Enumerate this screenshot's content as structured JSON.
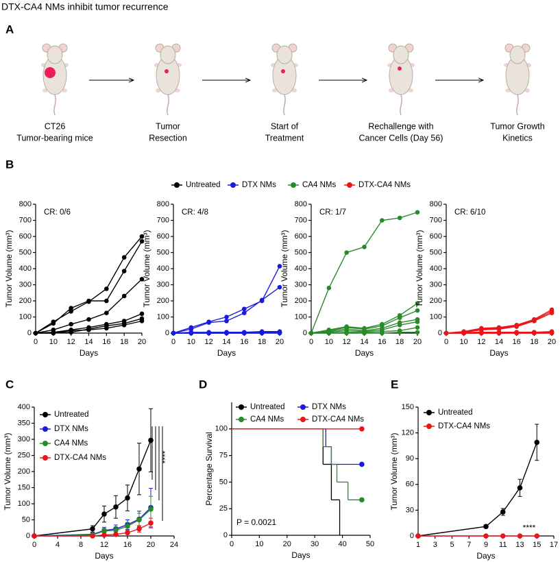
{
  "figure_title": "DTX-CA4 NMs inhibit tumor recurrence",
  "panel_a": {
    "label": "A",
    "steps": [
      {
        "lines": [
          "CT26",
          "Tumor-bearing mice"
        ],
        "color": "#1f1f8f"
      },
      {
        "lines": [
          "Tumor",
          "Resection"
        ],
        "color": "#1f1f8f"
      },
      {
        "lines": [
          "Start of",
          "Treatment"
        ],
        "color": "#e8151b"
      },
      {
        "lines": [
          "Rechallenge with",
          "Cancer Cells (Day 56)"
        ],
        "color": "#000000"
      },
      {
        "lines": [
          "Tumor Growth",
          "Kinetics"
        ],
        "color": "#e8151b"
      }
    ]
  },
  "chart_data": [
    {
      "type": "line",
      "panel_label": "B",
      "legend": [
        {
          "name": "Untreated",
          "color": "#000000"
        },
        {
          "name": "DTX NMs",
          "color": "#1a1adb"
        },
        {
          "name": "CA4 NMs",
          "color": "#2a8a2a"
        },
        {
          "name": "DTX-CA4 NMs",
          "color": "#e8151b"
        }
      ],
      "categories": [
        "0",
        "10",
        "12",
        "14",
        "16",
        "18",
        "20"
      ],
      "ylim": [
        0,
        800
      ],
      "yticks": [
        0,
        100,
        200,
        300,
        400,
        500,
        600,
        700,
        800
      ],
      "y_label": "Tumor Volume (mm³)",
      "x_label": "Days",
      "annotation_color": "#8b1a1a",
      "subplots": [
        {
          "annotation": "CR: 0/6",
          "color": "#000000",
          "lines": [
            [
              0,
              60,
              155,
              200,
              200,
              385,
              570
            ],
            [
              0,
              70,
              135,
              195,
              275,
              470,
              600
            ],
            [
              0,
              20,
              55,
              85,
              125,
              230,
              335
            ],
            [
              0,
              5,
              20,
              35,
              55,
              75,
              120
            ],
            [
              0,
              0,
              5,
              25,
              45,
              60,
              90
            ],
            [
              0,
              0,
              15,
              20,
              30,
              50,
              75
            ]
          ]
        },
        {
          "annotation": "CR: 4/8",
          "color": "#1a1adb",
          "lines": [
            [
              0,
              35,
              70,
              100,
              150,
              200,
              415
            ],
            [
              0,
              25,
              65,
              75,
              125,
              205,
              285
            ],
            [
              0,
              0,
              5,
              5,
              5,
              5,
              5
            ],
            [
              0,
              0,
              0,
              5,
              5,
              10,
              10
            ],
            [
              0,
              5,
              5,
              5,
              5,
              5,
              5
            ],
            [
              0,
              0,
              0,
              0,
              0,
              5,
              5
            ],
            [
              0,
              0,
              0,
              0,
              0,
              0,
              0
            ],
            [
              0,
              0,
              0,
              0,
              0,
              0,
              5
            ]
          ]
        },
        {
          "annotation": "CR: 1/7",
          "color": "#2a8a2a",
          "lines": [
            [
              0,
              280,
              500,
              535,
              700,
              715,
              750
            ],
            [
              0,
              20,
              40,
              30,
              55,
              110,
              185
            ],
            [
              0,
              15,
              35,
              25,
              45,
              95,
              140
            ],
            [
              0,
              10,
              25,
              15,
              30,
              65,
              85
            ],
            [
              0,
              5,
              15,
              10,
              20,
              50,
              70
            ],
            [
              0,
              0,
              5,
              5,
              10,
              15,
              35
            ],
            [
              0,
              0,
              0,
              0,
              0,
              5,
              5
            ]
          ]
        },
        {
          "annotation": "CR: 6/10",
          "color": "#e8151b",
          "lines": [
            [
              0,
              10,
              30,
              35,
              50,
              85,
              145
            ],
            [
              0,
              5,
              25,
              30,
              45,
              80,
              135
            ],
            [
              0,
              5,
              20,
              25,
              40,
              75,
              125
            ],
            [
              0,
              0,
              5,
              5,
              5,
              5,
              10
            ],
            [
              0,
              0,
              0,
              5,
              5,
              5,
              5
            ],
            [
              0,
              5,
              5,
              5,
              5,
              5,
              5
            ],
            [
              0,
              0,
              0,
              0,
              5,
              5,
              5
            ],
            [
              0,
              0,
              0,
              0,
              0,
              0,
              0
            ],
            [
              0,
              0,
              0,
              0,
              0,
              5,
              5
            ],
            [
              0,
              0,
              5,
              0,
              0,
              0,
              0
            ]
          ]
        }
      ]
    },
    {
      "type": "line",
      "panel_label": "C",
      "y_label": "Tumor Volume (mm³)",
      "x_label": "Days",
      "x": [
        0,
        10,
        12,
        14,
        16,
        18,
        20
      ],
      "xlim": [
        0,
        24
      ],
      "xticks": [
        0,
        4,
        8,
        12,
        16,
        20,
        24
      ],
      "ylim": [
        0,
        400
      ],
      "yticks": [
        0,
        50,
        100,
        150,
        200,
        250,
        300,
        350,
        400
      ],
      "annotation": "****",
      "series": [
        {
          "name": "Untreated",
          "color": "#000000",
          "values": [
            0,
            22,
            68,
            90,
            118,
            208,
            297
          ],
          "errors": [
            0,
            10,
            25,
            35,
            40,
            80,
            98
          ]
        },
        {
          "name": "DTX NMs",
          "color": "#1a1adb",
          "values": [
            0,
            5,
            17,
            22,
            35,
            52,
            88
          ],
          "errors": [
            0,
            3,
            10,
            12,
            15,
            25,
            60
          ]
        },
        {
          "name": "CA4 NMs",
          "color": "#2a8a2a",
          "values": [
            0,
            3,
            15,
            18,
            30,
            50,
            83
          ],
          "errors": [
            0,
            3,
            8,
            10,
            12,
            20,
            40
          ]
        },
        {
          "name": "DTX-CA4 NMs",
          "color": "#e8151b",
          "values": [
            0,
            0,
            3,
            5,
            10,
            22,
            40
          ],
          "errors": [
            0,
            0,
            3,
            4,
            5,
            10,
            15
          ]
        }
      ]
    },
    {
      "type": "step",
      "panel_label": "D",
      "y_label": "Percentage Survival",
      "x_label": "Days",
      "xlim": [
        0,
        50
      ],
      "xticks": [
        0,
        10,
        20,
        30,
        40,
        50
      ],
      "ylim": [
        0,
        125
      ],
      "yticks": [
        0,
        25,
        50,
        75,
        100
      ],
      "annotation": "P = 0.0021",
      "series": [
        {
          "name": "Untreated",
          "color": "#000000",
          "x": [
            0,
            33,
            36,
            39
          ],
          "values": [
            100,
            66.7,
            33.3,
            0
          ]
        },
        {
          "name": "DTX NMs",
          "color": "#1a1adb",
          "x": [
            0,
            34,
            36,
            47
          ],
          "values": [
            100,
            83.3,
            66.7,
            66.7
          ]
        },
        {
          "name": "CA4 NMs",
          "color": "#2a8a2a",
          "x": [
            0,
            33,
            36,
            38,
            42,
            47
          ],
          "values": [
            100,
            83.3,
            66.7,
            50,
            33.3,
            33.3
          ]
        },
        {
          "name": "DTX-CA4 NMs",
          "color": "#e8151b",
          "x": [
            0,
            47
          ],
          "values": [
            100,
            100
          ]
        }
      ]
    },
    {
      "type": "line",
      "panel_label": "E",
      "y_label": "Tumor Volume (mm³)",
      "x_label": "Days",
      "x": [
        1,
        9,
        11,
        13,
        15
      ],
      "xlim": [
        1,
        17
      ],
      "xticks": [
        1,
        3,
        5,
        7,
        9,
        11,
        13,
        15,
        17
      ],
      "ylim": [
        0,
        150
      ],
      "yticks": [
        0,
        30,
        60,
        90,
        120,
        150
      ],
      "annotation": "****",
      "series": [
        {
          "name": "Untreated",
          "color": "#000000",
          "values": [
            0,
            11,
            28,
            56,
            109
          ],
          "errors": [
            0,
            2,
            4,
            10,
            21
          ]
        },
        {
          "name": "DTX-CA4 NMs",
          "color": "#e8151b",
          "values": [
            0,
            0,
            0,
            0,
            0
          ]
        }
      ]
    }
  ]
}
